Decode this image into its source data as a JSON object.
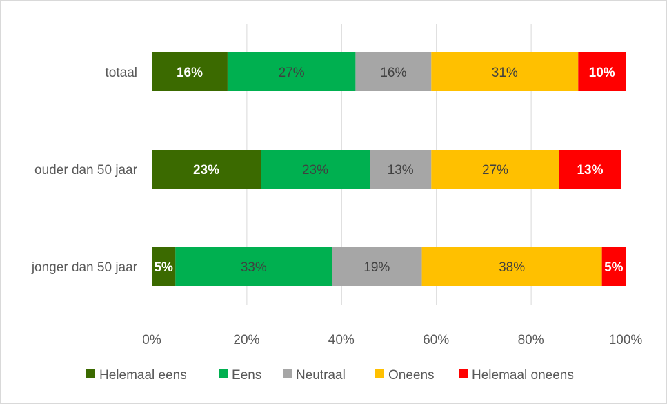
{
  "chart_data": {
    "type": "bar",
    "orientation": "horizontal",
    "stacked": true,
    "percent": true,
    "categories": [
      "totaal",
      "ouder dan 50 jaar",
      "jonger dan 50 jaar"
    ],
    "series": [
      {
        "name": "Helemaal eens",
        "color": "#3b6a00",
        "values": [
          16,
          23,
          5
        ],
        "labels": [
          "16%",
          "23%",
          "5%"
        ],
        "label_style": "bold"
      },
      {
        "name": "Eens",
        "color": "#00b050",
        "values": [
          27,
          23,
          33
        ],
        "labels": [
          "27%",
          "23%",
          "33%"
        ],
        "label_style": "plain"
      },
      {
        "name": "Neutraal",
        "color": "#a6a6a6",
        "values": [
          16,
          13,
          19
        ],
        "labels": [
          "16%",
          "13%",
          "19%"
        ],
        "label_style": "plain"
      },
      {
        "name": "Oneens",
        "color": "#ffc000",
        "values": [
          31,
          27,
          38
        ],
        "labels": [
          "31%",
          "27%",
          "38%"
        ],
        "label_style": "plain"
      },
      {
        "name": "Helemaal oneens",
        "color": "#ff0000",
        "values": [
          10,
          13,
          5
        ],
        "labels": [
          "10%",
          "13%",
          "5%"
        ],
        "label_style": "bold"
      }
    ],
    "x_ticks": [
      "0%",
      "20%",
      "40%",
      "60%",
      "80%",
      "100%"
    ],
    "xlim": [
      0,
      100
    ],
    "grid": true,
    "legend_position": "bottom",
    "title": "",
    "xlabel": "",
    "ylabel": ""
  }
}
